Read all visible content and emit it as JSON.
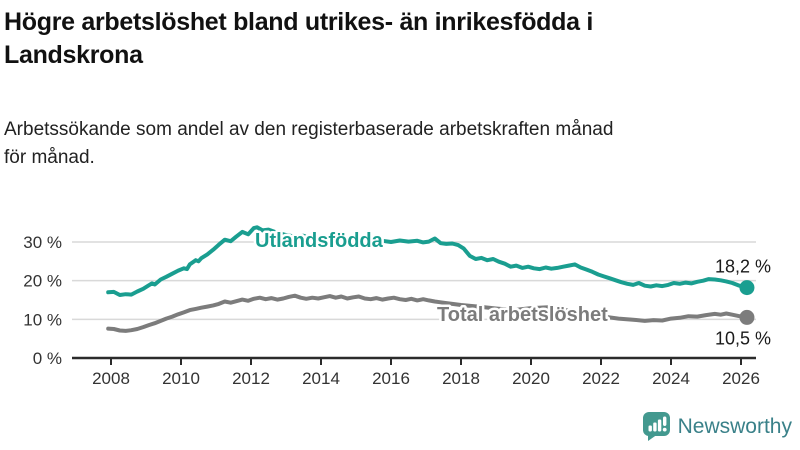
{
  "header": {
    "title": "Högre arbetslöshet bland utrikes- än inrikesfödda i\nLandskrona",
    "subtitle": "Arbetssökande som andel av den registerbaserade arbetskraften månad\nför månad."
  },
  "footer": {
    "brand": "Newsworthy"
  },
  "colors": {
    "foreign_born": "#1a9e90",
    "total": "#7c7c7c",
    "axis": "#2b2b2b",
    "grid": "#d9d9d9",
    "tick_text": "#333333",
    "annotation_text": "#1a1a1a",
    "brand_icon": "#43998f",
    "brand_text": "#3a8189"
  },
  "chart_data": {
    "type": "line",
    "title": "Högre arbetslöshet bland utrikes- än inrikesfödda i Landskrona",
    "subtitle": "Arbetssökande som andel av den registerbaserade arbetskraften månad för månad.",
    "xlabel": "",
    "ylabel": "",
    "grid": "horizontal",
    "x_axis": {
      "ticks": [
        2008,
        2010,
        2012,
        2014,
        2016,
        2018,
        2020,
        2022,
        2024,
        2026
      ],
      "range": [
        2007.8,
        2026.6
      ]
    },
    "y_axis": {
      "ticks": [
        0,
        10,
        20,
        30
      ],
      "tick_labels": [
        "0 %",
        "10 %",
        "20 %",
        "30 %"
      ],
      "unit": "%",
      "range": [
        0,
        36
      ]
    },
    "series": [
      {
        "name": "Utlandsfödda",
        "color_key": "foreign_born",
        "end_label": "18,2 %",
        "end_value": 18.2,
        "points": [
          [
            2007.92,
            17.0
          ],
          [
            2008.08,
            17.1
          ],
          [
            2008.25,
            16.3
          ],
          [
            2008.42,
            16.5
          ],
          [
            2008.58,
            16.4
          ],
          [
            2008.75,
            17.2
          ],
          [
            2008.92,
            17.9
          ],
          [
            2009.08,
            18.8
          ],
          [
            2009.17,
            19.3
          ],
          [
            2009.25,
            19.0
          ],
          [
            2009.42,
            20.3
          ],
          [
            2009.58,
            21.0
          ],
          [
            2009.75,
            21.8
          ],
          [
            2009.92,
            22.6
          ],
          [
            2010.08,
            23.2
          ],
          [
            2010.17,
            23.0
          ],
          [
            2010.25,
            24.2
          ],
          [
            2010.42,
            25.3
          ],
          [
            2010.5,
            25.0
          ],
          [
            2010.58,
            25.8
          ],
          [
            2010.75,
            26.8
          ],
          [
            2010.92,
            28.0
          ],
          [
            2011.08,
            29.3
          ],
          [
            2011.25,
            30.6
          ],
          [
            2011.42,
            30.2
          ],
          [
            2011.58,
            31.4
          ],
          [
            2011.75,
            32.6
          ],
          [
            2011.92,
            32.0
          ],
          [
            2012.08,
            33.6
          ],
          [
            2012.17,
            33.8
          ],
          [
            2012.33,
            33.0
          ],
          [
            2012.5,
            33.2
          ],
          [
            2012.75,
            32.4
          ],
          [
            2013.0,
            31.8
          ],
          [
            2013.25,
            31.4
          ],
          [
            2013.5,
            31.6
          ],
          [
            2013.75,
            30.9
          ],
          [
            2014.0,
            31.2
          ],
          [
            2014.25,
            31.5
          ],
          [
            2014.5,
            30.8
          ],
          [
            2014.75,
            30.4
          ],
          [
            2015.0,
            30.6
          ],
          [
            2015.25,
            30.2
          ],
          [
            2015.5,
            29.9
          ],
          [
            2015.75,
            30.3
          ],
          [
            2016.0,
            30.0
          ],
          [
            2016.25,
            30.4
          ],
          [
            2016.5,
            30.1
          ],
          [
            2016.75,
            30.3
          ],
          [
            2016.92,
            29.9
          ],
          [
            2017.08,
            30.1
          ],
          [
            2017.25,
            30.9
          ],
          [
            2017.42,
            29.7
          ],
          [
            2017.58,
            29.5
          ],
          [
            2017.75,
            29.6
          ],
          [
            2017.92,
            29.2
          ],
          [
            2018.08,
            28.3
          ],
          [
            2018.25,
            26.4
          ],
          [
            2018.42,
            25.6
          ],
          [
            2018.58,
            25.9
          ],
          [
            2018.75,
            25.3
          ],
          [
            2018.92,
            25.6
          ],
          [
            2019.08,
            24.9
          ],
          [
            2019.25,
            24.4
          ],
          [
            2019.42,
            23.6
          ],
          [
            2019.58,
            23.9
          ],
          [
            2019.75,
            23.3
          ],
          [
            2019.92,
            23.6
          ],
          [
            2020.08,
            23.2
          ],
          [
            2020.25,
            23.0
          ],
          [
            2020.42,
            23.4
          ],
          [
            2020.58,
            23.1
          ],
          [
            2020.75,
            23.3
          ],
          [
            2020.92,
            23.6
          ],
          [
            2021.08,
            23.9
          ],
          [
            2021.25,
            24.2
          ],
          [
            2021.42,
            23.4
          ],
          [
            2021.58,
            22.9
          ],
          [
            2021.75,
            22.3
          ],
          [
            2021.92,
            21.6
          ],
          [
            2022.08,
            21.1
          ],
          [
            2022.25,
            20.6
          ],
          [
            2022.42,
            20.1
          ],
          [
            2022.58,
            19.6
          ],
          [
            2022.75,
            19.2
          ],
          [
            2022.92,
            18.9
          ],
          [
            2023.08,
            19.4
          ],
          [
            2023.25,
            18.7
          ],
          [
            2023.42,
            18.5
          ],
          [
            2023.58,
            18.8
          ],
          [
            2023.75,
            18.6
          ],
          [
            2023.92,
            18.9
          ],
          [
            2024.08,
            19.4
          ],
          [
            2024.25,
            19.2
          ],
          [
            2024.42,
            19.5
          ],
          [
            2024.58,
            19.3
          ],
          [
            2024.75,
            19.7
          ],
          [
            2024.92,
            20.0
          ],
          [
            2025.08,
            20.4
          ],
          [
            2025.25,
            20.3
          ],
          [
            2025.42,
            20.1
          ],
          [
            2025.58,
            19.8
          ],
          [
            2025.75,
            19.4
          ],
          [
            2025.92,
            18.8
          ],
          [
            2026.08,
            18.4
          ],
          [
            2026.17,
            18.2
          ]
        ]
      },
      {
        "name": "Total arbetslöshet",
        "color_key": "total",
        "end_label": "10,5 %",
        "end_value": 10.5,
        "points": [
          [
            2007.92,
            7.6
          ],
          [
            2008.08,
            7.5
          ],
          [
            2008.25,
            7.1
          ],
          [
            2008.42,
            7.0
          ],
          [
            2008.58,
            7.2
          ],
          [
            2008.75,
            7.5
          ],
          [
            2008.92,
            8.0
          ],
          [
            2009.08,
            8.5
          ],
          [
            2009.25,
            9.0
          ],
          [
            2009.42,
            9.6
          ],
          [
            2009.58,
            10.2
          ],
          [
            2009.75,
            10.7
          ],
          [
            2009.92,
            11.3
          ],
          [
            2010.08,
            11.8
          ],
          [
            2010.25,
            12.4
          ],
          [
            2010.42,
            12.7
          ],
          [
            2010.58,
            13.0
          ],
          [
            2010.75,
            13.3
          ],
          [
            2010.92,
            13.6
          ],
          [
            2011.08,
            14.0
          ],
          [
            2011.25,
            14.6
          ],
          [
            2011.42,
            14.3
          ],
          [
            2011.58,
            14.7
          ],
          [
            2011.75,
            15.1
          ],
          [
            2011.92,
            14.8
          ],
          [
            2012.08,
            15.3
          ],
          [
            2012.25,
            15.6
          ],
          [
            2012.42,
            15.2
          ],
          [
            2012.58,
            15.5
          ],
          [
            2012.75,
            15.1
          ],
          [
            2012.92,
            15.4
          ],
          [
            2013.08,
            15.8
          ],
          [
            2013.25,
            16.1
          ],
          [
            2013.42,
            15.6
          ],
          [
            2013.58,
            15.3
          ],
          [
            2013.75,
            15.6
          ],
          [
            2013.92,
            15.4
          ],
          [
            2014.08,
            15.7
          ],
          [
            2014.25,
            16.0
          ],
          [
            2014.42,
            15.6
          ],
          [
            2014.58,
            15.9
          ],
          [
            2014.75,
            15.4
          ],
          [
            2014.92,
            15.7
          ],
          [
            2015.08,
            15.9
          ],
          [
            2015.25,
            15.4
          ],
          [
            2015.42,
            15.2
          ],
          [
            2015.58,
            15.5
          ],
          [
            2015.75,
            15.1
          ],
          [
            2015.92,
            15.4
          ],
          [
            2016.08,
            15.6
          ],
          [
            2016.25,
            15.2
          ],
          [
            2016.42,
            15.0
          ],
          [
            2016.58,
            15.3
          ],
          [
            2016.75,
            14.9
          ],
          [
            2016.92,
            15.2
          ],
          [
            2017.08,
            14.9
          ],
          [
            2017.25,
            14.6
          ],
          [
            2017.42,
            14.4
          ],
          [
            2017.58,
            14.2
          ],
          [
            2017.75,
            14.0
          ],
          [
            2018.0,
            13.7
          ],
          [
            2018.5,
            13.3
          ],
          [
            2019.0,
            12.8
          ],
          [
            2019.5,
            12.4
          ],
          [
            2020.0,
            12.9
          ],
          [
            2020.5,
            13.1
          ],
          [
            2021.0,
            12.4
          ],
          [
            2021.5,
            11.6
          ],
          [
            2022.0,
            10.8
          ],
          [
            2022.5,
            10.2
          ],
          [
            2022.92,
            9.9
          ],
          [
            2023.25,
            9.6
          ],
          [
            2023.5,
            9.8
          ],
          [
            2023.75,
            9.7
          ],
          [
            2024.0,
            10.2
          ],
          [
            2024.25,
            10.4
          ],
          [
            2024.5,
            10.8
          ],
          [
            2024.75,
            10.7
          ],
          [
            2025.0,
            11.1
          ],
          [
            2025.25,
            11.4
          ],
          [
            2025.42,
            11.2
          ],
          [
            2025.58,
            11.5
          ],
          [
            2025.75,
            11.2
          ],
          [
            2025.92,
            10.9
          ],
          [
            2026.08,
            10.6
          ],
          [
            2026.17,
            10.5
          ]
        ]
      }
    ],
    "legend_position": "inline-labels"
  }
}
